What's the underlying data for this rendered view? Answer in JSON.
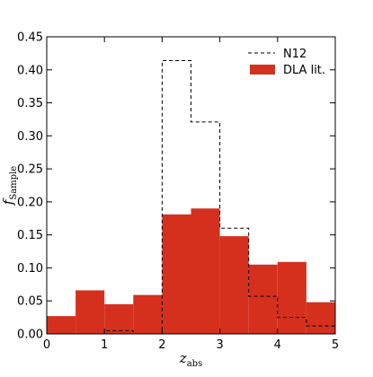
{
  "colors": {
    "dla_fill": "#d5301e",
    "n12_line": "#000000",
    "frame": "#000000",
    "background": "#ffffff"
  },
  "chart_data": {
    "type": "histogram",
    "x_axis": {
      "label_main": "z",
      "label_sub": "abs",
      "range": [
        0,
        5
      ],
      "ticks": [
        0,
        1,
        2,
        3,
        4,
        5
      ],
      "tick_labels": [
        "0",
        "1",
        "2",
        "3",
        "4",
        "5"
      ]
    },
    "y_axis": {
      "label_main": "f",
      "label_sub": "Sample",
      "range": [
        0,
        0.45
      ],
      "ticks": [
        0,
        0.05,
        0.1,
        0.15,
        0.2,
        0.25,
        0.3,
        0.35,
        0.4,
        0.45
      ],
      "tick_labels": [
        "0.00",
        "0.05",
        "0.10",
        "0.15",
        "0.20",
        "0.25",
        "0.30",
        "0.35",
        "0.40",
        "0.45"
      ]
    },
    "bin_edges": [
      0,
      0.5,
      1.0,
      1.5,
      2.0,
      2.5,
      3.0,
      3.5,
      4.0,
      4.5,
      5.0
    ],
    "series": [
      {
        "name": "DLA lit.",
        "style": "filled",
        "values": [
          0.027,
          0.066,
          0.045,
          0.059,
          0.181,
          0.19,
          0.148,
          0.105,
          0.109,
          0.048
        ]
      },
      {
        "name": "N12",
        "style": "dashed-step",
        "values": [
          0.0,
          0.0,
          0.005,
          0.0,
          0.414,
          0.321,
          0.16,
          0.057,
          0.025,
          0.012
        ]
      }
    ],
    "legend": {
      "position": "upper-right",
      "entries": [
        "N12",
        "DLA lit."
      ]
    },
    "grid": false
  }
}
